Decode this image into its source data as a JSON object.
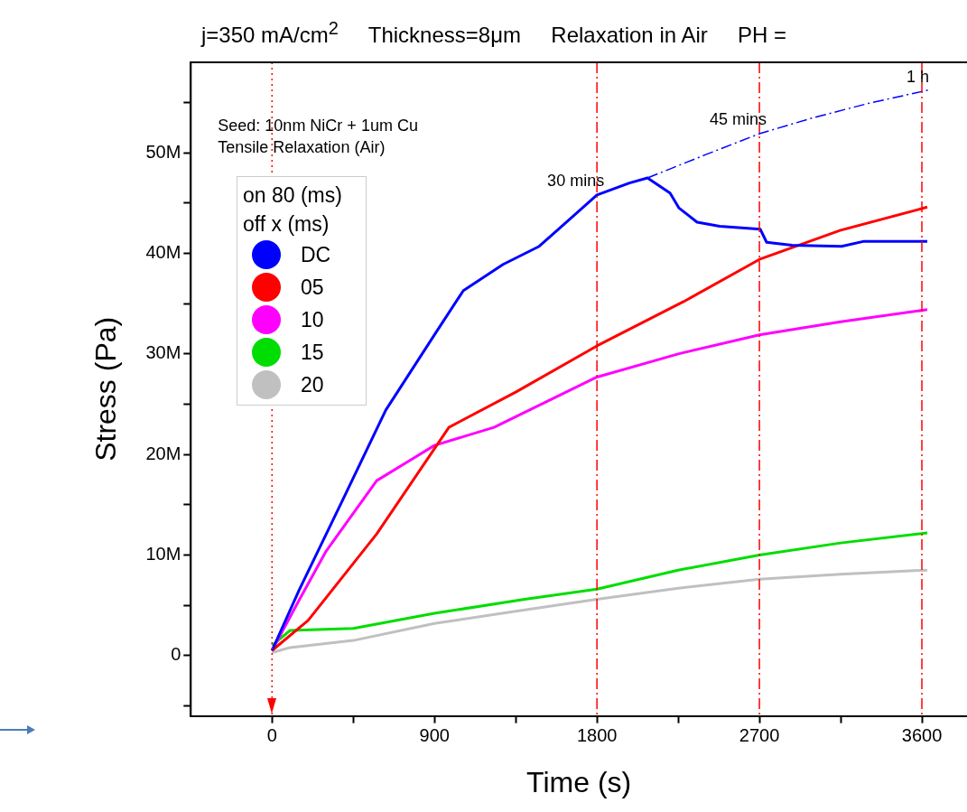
{
  "chart_data": {
    "type": "line",
    "title": "j=350 mA/cm$^{2}$     Thickness=8μm     Relaxation in Air     PH =",
    "xlabel": "Time (s)",
    "ylabel": "Stress (Pa)",
    "legend_title": "on 80 (ms) off x (ms)",
    "legend": "top left",
    "grid": false,
    "marker": "none",
    "line_style": "solid",
    "xlim": [
      -450,
      3850
    ],
    "xticks": [
      0,
      {
        "value": 450,
        "label": null
      },
      900,
      {
        "value": 1350,
        "label": null
      },
      1800,
      {
        "value": 2250,
        "label": null
      },
      2700,
      {
        "value": 3150,
        "label": null
      },
      3600
    ],
    "ylim": [
      -6000000,
      59000000
    ],
    "yticks": [
      {
        "value": -5000000,
        "label": null
      },
      {
        "value": 0,
        "label": "0"
      },
      {
        "value": 5000000,
        "label": null
      },
      {
        "value": 10000000,
        "label": "10M"
      },
      {
        "value": 15000000,
        "label": null
      },
      {
        "value": 20000000,
        "label": "20M"
      },
      {
        "value": 25000000,
        "label": null
      },
      {
        "value": 30000000,
        "label": "30M"
      },
      {
        "value": 35000000,
        "label": null
      },
      {
        "value": 40000000,
        "label": "40M"
      },
      {
        "value": 45000000,
        "label": null
      },
      {
        "value": 50000000,
        "label": "50M"
      },
      {
        "value": 55000000,
        "label": null
      }
    ],
    "series": [
      {
        "name": "DC",
        "color": "#0000ff",
        "x": [
          0,
          150,
          395,
          630,
          900,
          1060,
          1280,
          1480,
          1800,
          1980,
          2080,
          2205,
          2255,
          2355,
          2480,
          2705,
          2740,
          2880,
          3155,
          3280,
          3630
        ],
        "values": [
          500000,
          6500000,
          15600000,
          24400000,
          31900000,
          36300000,
          38900000,
          40700000,
          45800000,
          47000000,
          47500000,
          46000000,
          44500000,
          43100000,
          42700000,
          42400000,
          41100000,
          40800000,
          40700000,
          41200000,
          41200000
        ]
      },
      {
        "name": "05",
        "color": "#ff0000",
        "x": [
          0,
          200,
          580,
          980,
          1350,
          1800,
          2280,
          2700,
          3150,
          3630
        ],
        "values": [
          500000,
          3500000,
          12100000,
          22700000,
          26200000,
          30800000,
          35200000,
          39400000,
          42300000,
          44600000
        ]
      },
      {
        "name": "10",
        "color": "#ff00ff",
        "x": [
          0,
          150,
          300,
          580,
          900,
          1230,
          1800,
          2250,
          2700,
          3150,
          3630
        ],
        "values": [
          500000,
          5500000,
          10400000,
          17400000,
          20900000,
          22700000,
          27700000,
          30000000,
          31900000,
          33200000,
          34400000
        ]
      },
      {
        "name": "15",
        "color": "#00dd00",
        "x": [
          0,
          100,
          450,
          900,
          1400,
          1800,
          2250,
          2700,
          3150,
          3630
        ],
        "values": [
          1000000,
          2500000,
          2700000,
          4200000,
          5600000,
          6600000,
          8500000,
          10000000,
          11200000,
          12200000
        ]
      },
      {
        "name": "20",
        "color": "#c0c0c0",
        "x": [
          0,
          100,
          450,
          900,
          1350,
          1800,
          2250,
          2700,
          3150,
          3630
        ],
        "values": [
          300000,
          800000,
          1500000,
          3200000,
          4400000,
          5600000,
          6700000,
          7600000,
          8100000,
          8500000
        ]
      },
      {
        "color": "#0000ff",
        "line_style": "dashed",
        "x": [
          2080,
          2400,
          2700,
          3000,
          3300,
          3650
        ],
        "values": [
          47500000,
          49800000,
          51900000,
          53500000,
          54900000,
          56300000
        ]
      }
    ],
    "ref_lines": [
      {
        "axis": "x",
        "value": 0,
        "color": "#ff0000",
        "line_style": "dotted"
      },
      {
        "axis": "x",
        "value": 1800,
        "color": "#ff0000",
        "line_style": "dashed"
      },
      {
        "axis": "x",
        "value": 2700,
        "color": "#ff0000",
        "line_style": "dashed"
      },
      {
        "axis": "x",
        "value": 3600,
        "color": "#ff0000",
        "line_style": "dashed"
      }
    ],
    "annotations": [
      "Seed: 10nm NiCr + 1um Cu",
      "Tensile Relaxation (Air)",
      {
        "text": "30 mins",
        "x": 1800,
        "y": 45800000
      },
      {
        "text": "45 mins",
        "x": 2700,
        "y": 51900000
      },
      {
        "text": "1 h",
        "x": 3600,
        "y": 56100000
      }
    ]
  }
}
